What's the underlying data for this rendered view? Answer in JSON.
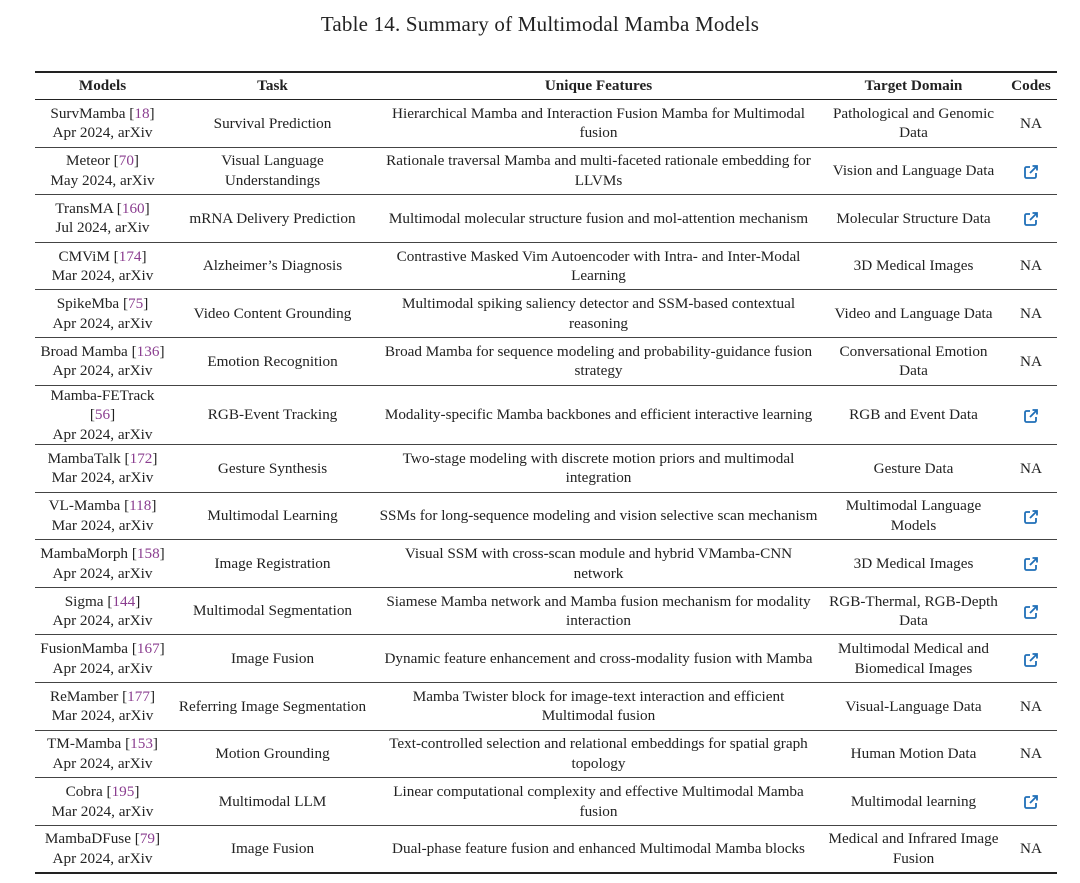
{
  "title": "Table 14.  Summary of Multimodal Mamba Models",
  "colors": {
    "reference": "#8a3d8f",
    "link_icon": "#1f6fb8"
  },
  "columns": [
    "Models",
    "Task",
    "Unique Features",
    "Target Domain",
    "Codes"
  ],
  "rows": [
    {
      "model": "SurvMamba",
      "ref": "18",
      "date": "Apr 2024, arXiv",
      "task": "Survival Prediction",
      "features": "Hierarchical Mamba and Interaction Fusion Mamba for Multimodal fusion",
      "domain": "Pathological and Genomic Data",
      "code": "NA"
    },
    {
      "model": "Meteor",
      "ref": "70",
      "date": "May 2024, arXiv",
      "task": "Visual Language Understandings",
      "features": "Rationale traversal Mamba and multi-faceted rationale embedding for LLVMs",
      "domain": "Vision and Language Data",
      "code": "external-link-icon"
    },
    {
      "model": "TransMA",
      "ref": "160",
      "date": "Jul 2024, arXiv",
      "task": "mRNA Delivery Prediction",
      "features": "Multimodal molecular structure fusion and mol-attention mechanism",
      "domain": "Molecular Structure Data",
      "code": "external-link-icon"
    },
    {
      "model": "CMViM",
      "ref": "174",
      "date": "Mar 2024, arXiv",
      "task": "Alzheimer’s Diagnosis",
      "features": "Contrastive Masked Vim Autoencoder with Intra- and Inter-Modal Learning",
      "domain": "3D Medical Images",
      "code": "NA"
    },
    {
      "model": "SpikeMba",
      "ref": "75",
      "date": "Apr 2024, arXiv",
      "task": "Video Content Grounding",
      "features": "Multimodal spiking saliency detector and SSM-based contextual reasoning",
      "domain": "Video and Language Data",
      "code": "NA"
    },
    {
      "model": "Broad Mamba",
      "ref": "136",
      "date": "Apr 2024, arXiv",
      "task": "Emotion Recognition",
      "features": "Broad Mamba for sequence modeling and probability-guidance fusion strategy",
      "domain": "Conversational Emotion Data",
      "code": "NA"
    },
    {
      "model": "Mamba-FETrack",
      "ref": "56",
      "date": "Apr 2024, arXiv",
      "task": "RGB-Event Tracking",
      "features": "Modality-specific Mamba backbones and efficient interactive learning",
      "domain": "RGB and Event Data",
      "code": "external-link-icon"
    },
    {
      "model": "MambaTalk",
      "ref": "172",
      "date": "Mar 2024, arXiv",
      "task": "Gesture Synthesis",
      "features": "Two-stage modeling with discrete motion priors and multimodal integration",
      "domain": "Gesture Data",
      "code": "NA"
    },
    {
      "model": "VL-Mamba",
      "ref": "118",
      "date": "Mar 2024, arXiv",
      "task": "Multimodal Learning",
      "features": "SSMs for long-sequence modeling and vision selective scan mechanism",
      "domain": "Multimodal Language Models",
      "code": "external-link-icon"
    },
    {
      "model": "MambaMorph",
      "ref": "158",
      "date": "Apr 2024, arXiv",
      "task": "Image Registration",
      "features": "Visual SSM with cross-scan module and hybrid VMamba-CNN network",
      "domain": "3D Medical Images",
      "code": "external-link-icon"
    },
    {
      "model": "Sigma",
      "ref": "144",
      "date": "Apr 2024, arXiv",
      "task": "Multimodal Segmentation",
      "features": "Siamese Mamba network and Mamba fusion mechanism for modality interaction",
      "domain": "RGB-Thermal, RGB-Depth Data",
      "code": "external-link-icon"
    },
    {
      "model": "FusionMamba",
      "ref": "167",
      "date": "Apr 2024, arXiv",
      "task": "Image Fusion",
      "features": "Dynamic feature enhancement and cross-modality fusion with Mamba",
      "domain": "Multimodal Medical and Biomedical Images",
      "code": "external-link-icon"
    },
    {
      "model": "ReMamber",
      "ref": "177",
      "date": "Mar 2024, arXiv",
      "task": "Referring Image Segmentation",
      "features": "Mamba Twister block for image-text interaction and efficient Multimodal fusion",
      "domain": "Visual-Language Data",
      "code": "NA"
    },
    {
      "model": "TM-Mamba",
      "ref": "153",
      "date": "Apr 2024, arXiv",
      "task": "Motion Grounding",
      "features": "Text-controlled selection and relational embeddings for spatial graph topology",
      "domain": "Human Motion Data",
      "code": "NA"
    },
    {
      "model": "Cobra",
      "ref": "195",
      "date": "Mar 2024, arXiv",
      "task": "Multimodal LLM",
      "features": "Linear computational complexity and effective Multimodal Mamba fusion",
      "domain": "Multimodal learning",
      "code": "external-link-icon"
    },
    {
      "model": "MambaDFuse",
      "ref": "79",
      "date": "Apr 2024, arXiv",
      "task": "Image Fusion",
      "features": "Dual-phase feature fusion and enhanced Multimodal Mamba blocks",
      "domain": "Medical and Infrared Image Fusion",
      "code": "NA"
    }
  ]
}
